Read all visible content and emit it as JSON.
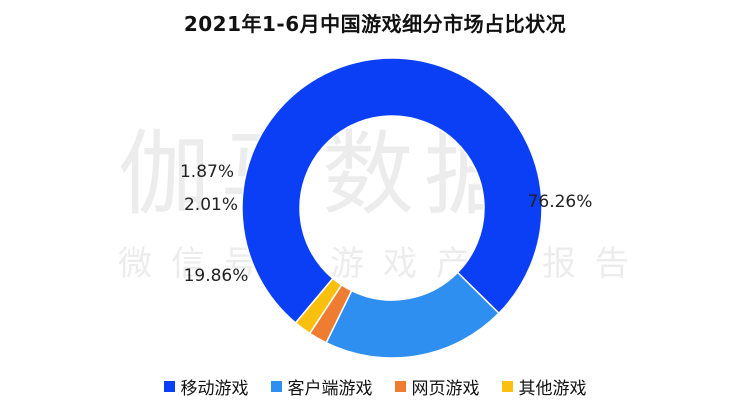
{
  "watermark": {
    "main": "伽马数据",
    "sub": "微信号：游戏产业报告"
  },
  "chart_data": {
    "type": "pie",
    "donut": true,
    "title": "2021年1-6月中国游戏细分市场占比状况",
    "legend_position": "bottom",
    "categories": [
      "移动游戏",
      "客户端游戏",
      "网页游戏",
      "其他游戏"
    ],
    "values": [
      76.26,
      19.86,
      2.01,
      1.87
    ],
    "labels": [
      "76.26%",
      "19.86%",
      "2.01%",
      "1.87%"
    ],
    "colors": [
      "#0a3ff5",
      "#2f8ff0",
      "#ee7d31",
      "#fbc00e"
    ]
  }
}
